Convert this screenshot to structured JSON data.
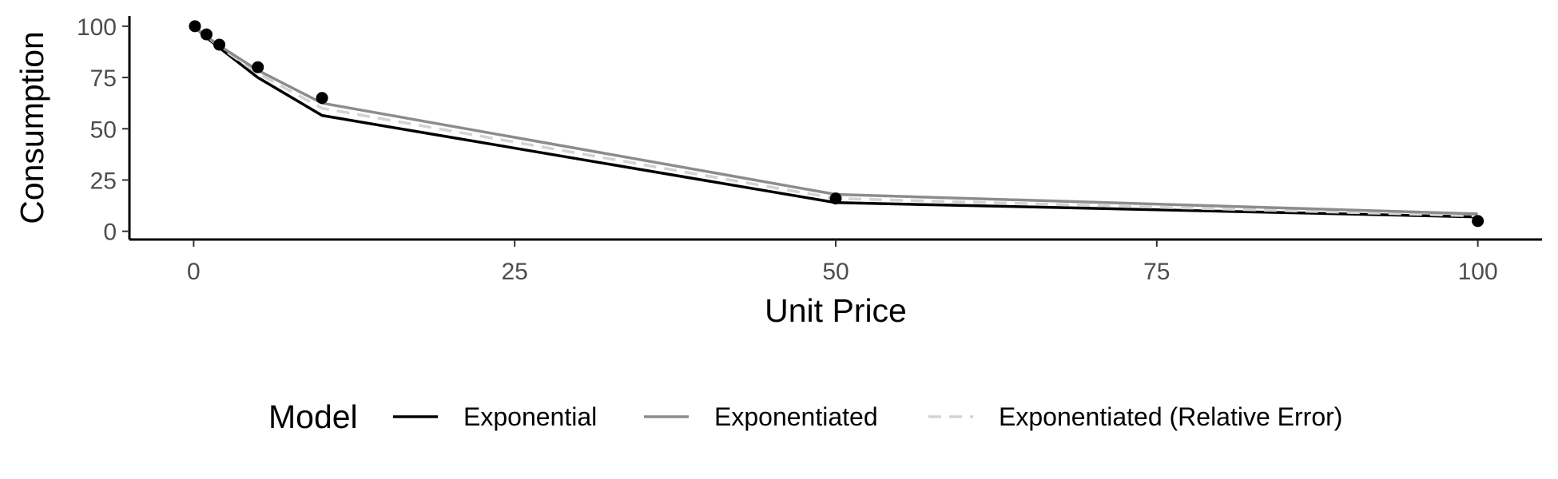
{
  "chart_data": {
    "type": "line",
    "xlabel": "Unit Price",
    "ylabel": "Consumption",
    "xlim": [
      -5,
      105
    ],
    "ylim": [
      -4,
      105
    ],
    "xticks": [
      0,
      25,
      50,
      75,
      100
    ],
    "yticks": [
      0,
      25,
      50,
      75,
      100
    ],
    "grid": false,
    "legend": {
      "title": "Model",
      "position": "bottom"
    },
    "x": [
      0.1,
      1,
      2,
      5,
      10,
      50,
      100
    ],
    "points": [
      100,
      96,
      91,
      80,
      65,
      16,
      5
    ],
    "series": [
      {
        "name": "Exponential",
        "color": "#000000",
        "dashed": false,
        "values": [
          99.5,
          94.5,
          89.5,
          75,
          56.5,
          14,
          7
        ]
      },
      {
        "name": "Exponentiated",
        "color": "#8c8c8c",
        "dashed": false,
        "values": [
          99.5,
          95,
          90.5,
          78.5,
          62.5,
          18,
          8.5
        ]
      },
      {
        "name": "Exponentiated (Relative Error)",
        "color": "#d3d3d3",
        "dashed": true,
        "values": [
          99.5,
          95,
          90,
          77,
          60,
          16,
          7.5
        ]
      }
    ]
  }
}
